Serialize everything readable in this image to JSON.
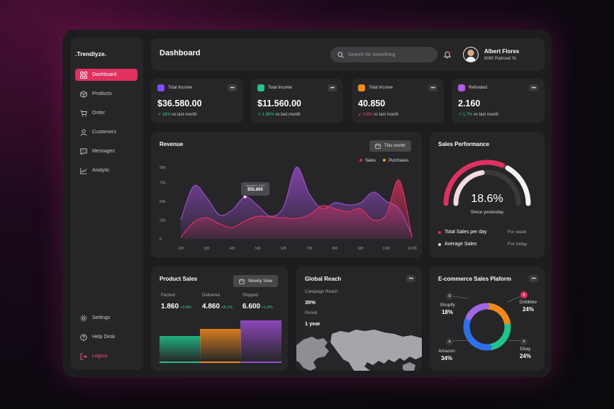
{
  "brand": ".Trendlyze.",
  "nav": {
    "items": [
      {
        "label": "Dashboard",
        "icon": "grid-icon"
      },
      {
        "label": "Products",
        "icon": "box-icon"
      },
      {
        "label": "Order",
        "icon": "cart-icon"
      },
      {
        "label": "Customers",
        "icon": "user-icon"
      },
      {
        "label": "Messages",
        "icon": "chat-icon"
      },
      {
        "label": "Analytic",
        "icon": "chart-line-icon"
      }
    ],
    "bottom": [
      {
        "label": "Settings",
        "icon": "gear-icon"
      },
      {
        "label": "Help Desk",
        "icon": "help-icon"
      },
      {
        "label": "Logout",
        "icon": "logout-icon"
      }
    ]
  },
  "header": {
    "title": "Dashboard",
    "search_placeholder": "Search for something",
    "user_name": "Albert Flores",
    "user_address": "8080 Railroad St."
  },
  "stats": [
    {
      "label": "Total Income",
      "value": "$36.580.00",
      "change": "16%",
      "direction": "up",
      "suffix": "vs last month",
      "color": "#7c4dff"
    },
    {
      "label": "Total Income",
      "value": "$11.560.00",
      "change": "1.96%",
      "direction": "up",
      "suffix": "vs last month",
      "color": "#22c58b"
    },
    {
      "label": "Total Income",
      "value": "40.850",
      "change": "4.8%",
      "direction": "down",
      "suffix": "vs last month",
      "color": "#f18a1a"
    },
    {
      "label": "Refunded",
      "value": "2.160",
      "change": "1.7%",
      "direction": "up",
      "suffix": "vs last month",
      "color": "#b15cf0"
    }
  ],
  "revenue": {
    "title": "Revenue",
    "filter": "This month",
    "legend": {
      "sales": "Sales",
      "purchases": "Purchases"
    },
    "tooltip": {
      "date": "August 6, 2026",
      "value": "$55.800"
    }
  },
  "chart_data": {
    "type": "area",
    "title": "Revenue",
    "categories": [
      "2/8",
      "3/8",
      "4/8",
      "5/8",
      "6/8",
      "7/8",
      "8/8",
      "9/8",
      "10/8",
      "11/08"
    ],
    "y_ticks": [
      "0",
      "25k",
      "50k",
      "75k",
      "95k"
    ],
    "ylim": [
      0,
      95000
    ],
    "series": [
      {
        "name": "Sales",
        "color": "#e0305f",
        "x": [
          0,
          0.5,
          1,
          1.5,
          2,
          2.5,
          3,
          3.5,
          4,
          4.5,
          5,
          5.5,
          6,
          6.5,
          7,
          7.5,
          8,
          8.5,
          9
        ],
        "values": [
          2000,
          22000,
          28000,
          20000,
          15000,
          24000,
          30000,
          29000,
          28000,
          27000,
          32000,
          44000,
          40000,
          36000,
          40000,
          25000,
          32000,
          78000,
          2000
        ]
      },
      {
        "name": "Purchases",
        "color": "#9c4dd0",
        "x": [
          0,
          0.5,
          1,
          1.5,
          2,
          2.5,
          3,
          3.5,
          4,
          4.5,
          5,
          5.5,
          6,
          6.5,
          7,
          7.5,
          8,
          8.5,
          9
        ],
        "values": [
          25000,
          70000,
          55000,
          32000,
          38000,
          55800,
          44000,
          30000,
          42000,
          95000,
          60000,
          40000,
          48000,
          45000,
          48000,
          62000,
          50000,
          40000,
          5000
        ]
      }
    ],
    "grid": false,
    "legend_position": "top-right"
  },
  "sales_performance": {
    "title": "Sales Performance",
    "percent": "18.6%",
    "caption": "Since yesterday",
    "gauges": [
      {
        "label": "Total Sales per day",
        "period": "For week",
        "color": "#e0305f",
        "fraction": 0.62
      },
      {
        "label": "Average Sales",
        "period": "For today",
        "color": "#f3d9e2",
        "fraction": 0.45
      }
    ]
  },
  "product_sales": {
    "title": "Product Sales",
    "filter": "Weekly View",
    "columns": [
      {
        "label": "Packed",
        "value": "1.860",
        "change": "+3.8%",
        "color": "#1fc58b",
        "level": 0.54
      },
      {
        "label": "Delivered",
        "value": "4.860",
        "change": "+8.1%",
        "color": "#f18a1a",
        "level": 0.68
      },
      {
        "label": "Shipped",
        "value": "6.600",
        "change": "+1.8%",
        "color": "#9c4dd0",
        "level": 0.86
      }
    ]
  },
  "global_reach": {
    "title": "Global Reach",
    "campaign_label": "Campaign Reach",
    "campaign_value": "35%",
    "period_label": "Period",
    "period_value": "1 year"
  },
  "ecommerce": {
    "title": "E-commerce Sales Plaform",
    "platforms": [
      {
        "name": "Shopify",
        "value": "18%",
        "color": "#a066e8"
      },
      {
        "name": "Dribbble",
        "value": "24%",
        "color": "#f18a1a"
      },
      {
        "name": "Amazon",
        "value": "34%",
        "color": "#2f6fe8"
      },
      {
        "name": "Ebay",
        "value": "24%",
        "color": "#1fc58b"
      }
    ]
  }
}
